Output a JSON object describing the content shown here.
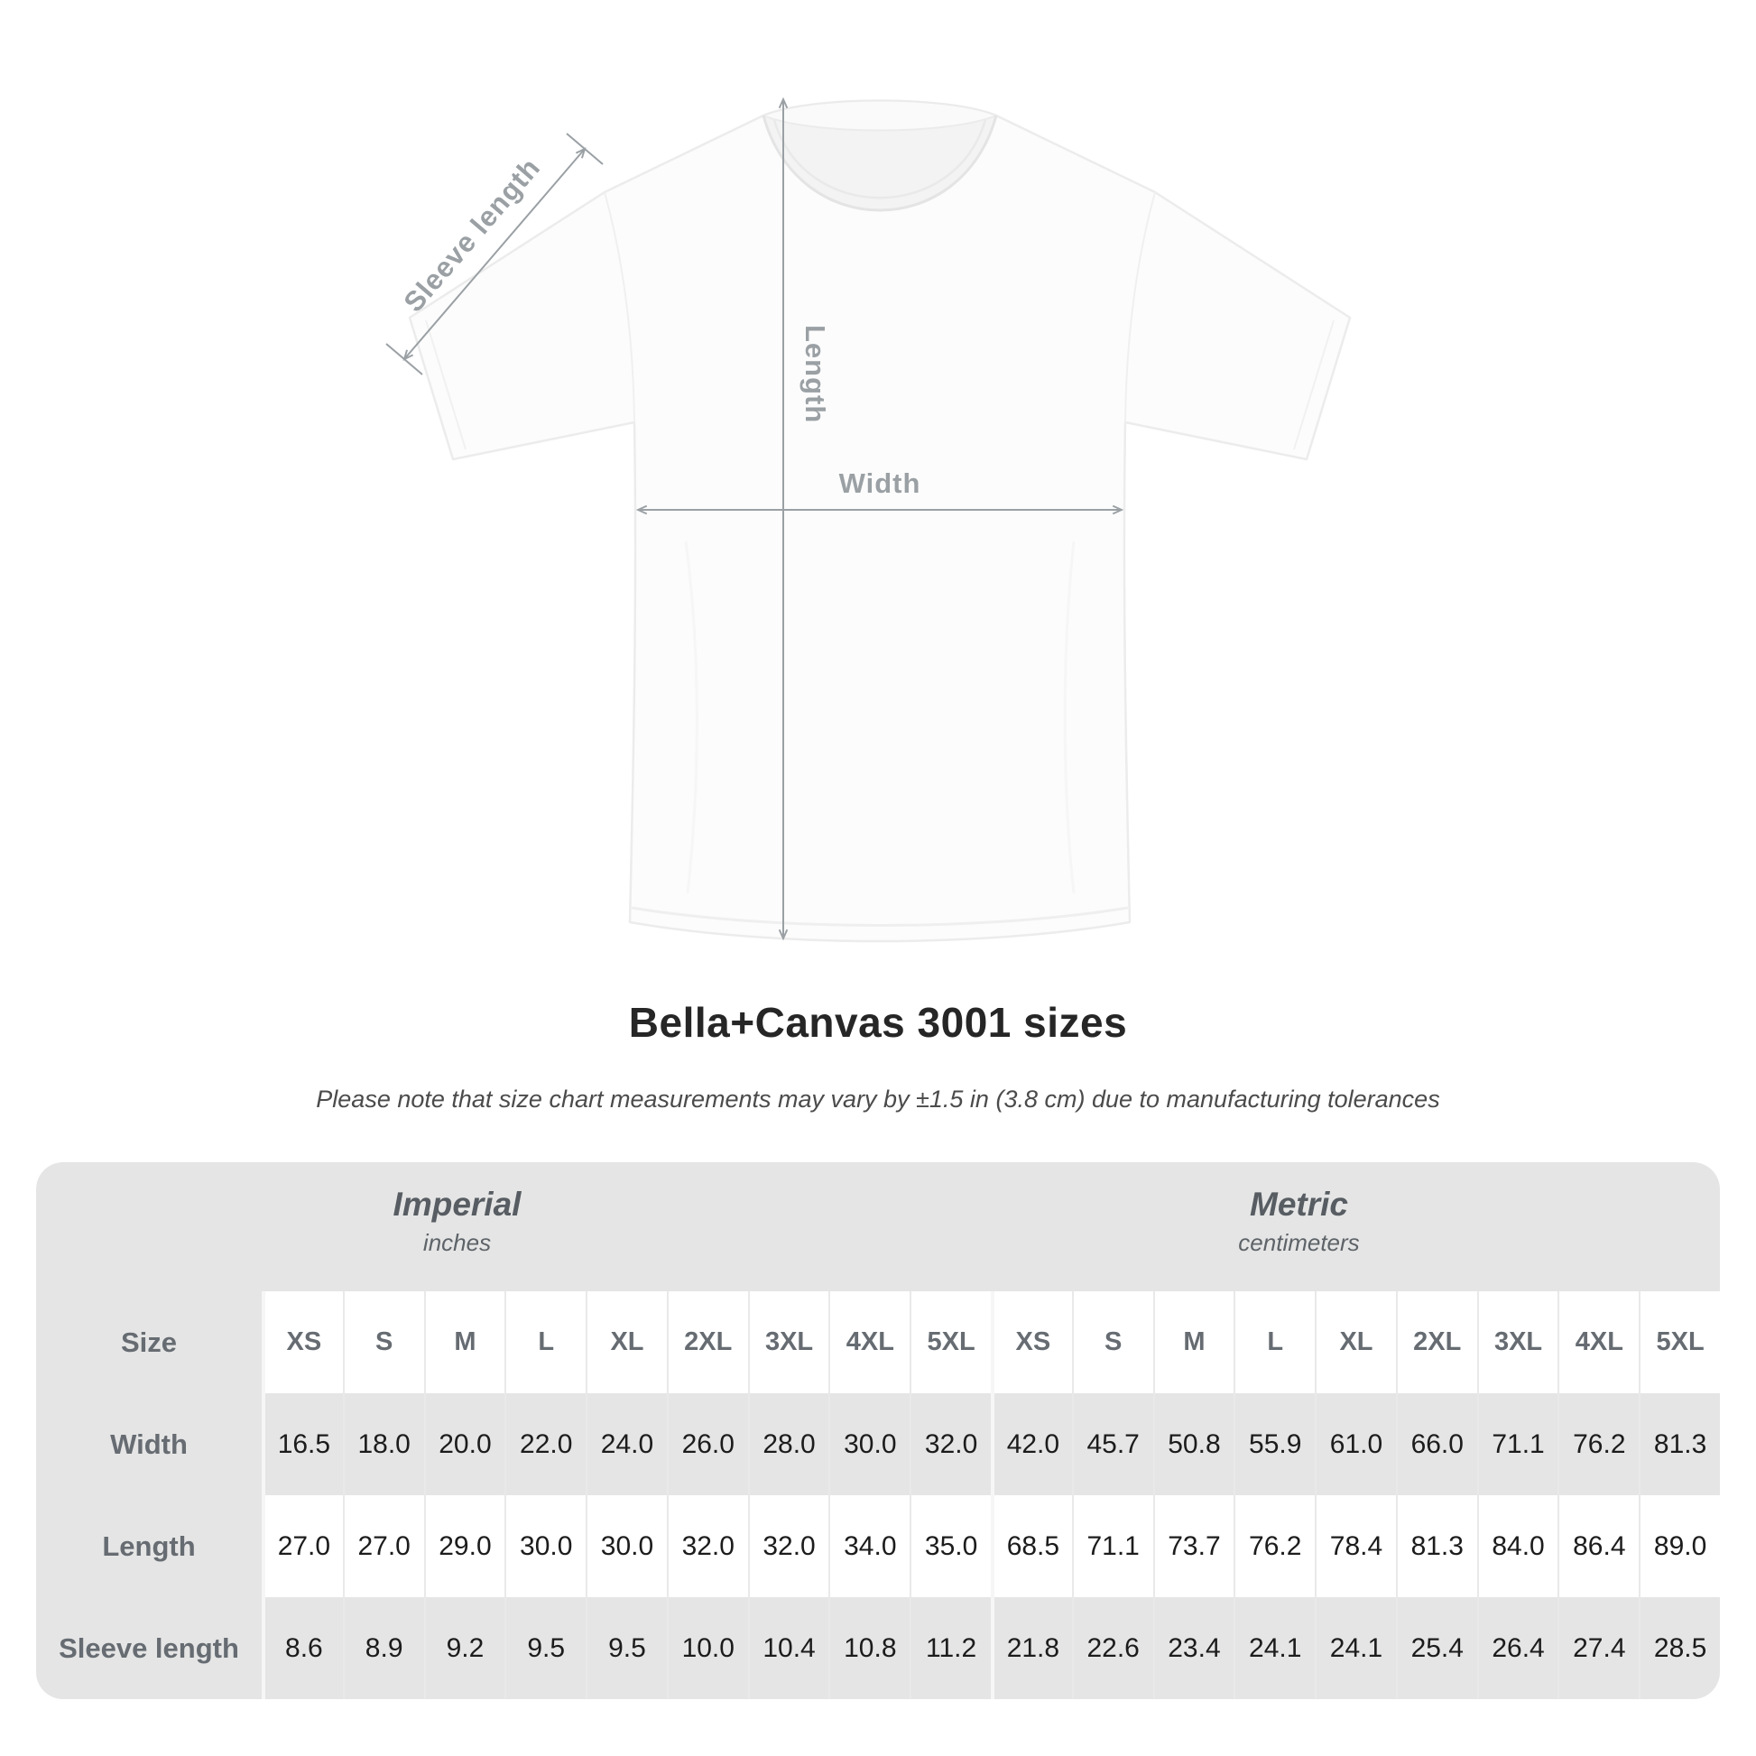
{
  "header": {
    "title": "Bella+Canvas 3001 sizes",
    "subtitle": "Please note that size chart measurements may vary by ±1.5 in (3.8 cm) due to manufacturing tolerances"
  },
  "diagram": {
    "labels": {
      "sleeve_length": "Sleeve length",
      "length": "Length",
      "width": "Width"
    },
    "annotation_color": "#9aa0a4",
    "shirt_color": "#fcfcfc"
  },
  "size_table": {
    "container_color": "#e5e5e5",
    "size_column_label": "Size",
    "groups": [
      {
        "name": "Imperial",
        "unit": "inches"
      },
      {
        "name": "Metric",
        "unit": "centimeters"
      }
    ],
    "sizes": [
      "XS",
      "S",
      "M",
      "L",
      "XL",
      "2XL",
      "3XL",
      "4XL",
      "5XL"
    ],
    "rows": [
      {
        "label": "Width",
        "imperial": [
          "16.5",
          "18.0",
          "20.0",
          "22.0",
          "24.0",
          "26.0",
          "28.0",
          "30.0",
          "32.0"
        ],
        "metric": [
          "42.0",
          "45.7",
          "50.8",
          "55.9",
          "61.0",
          "66.0",
          "71.1",
          "76.2",
          "81.3"
        ]
      },
      {
        "label": "Length",
        "imperial": [
          "27.0",
          "27.0",
          "29.0",
          "30.0",
          "30.0",
          "32.0",
          "32.0",
          "34.0",
          "35.0"
        ],
        "metric": [
          "68.5",
          "71.1",
          "73.7",
          "76.2",
          "78.4",
          "81.3",
          "84.0",
          "86.4",
          "89.0"
        ]
      },
      {
        "label": "Sleeve length",
        "imperial": [
          "8.6",
          "8.9",
          "9.2",
          "9.5",
          "9.5",
          "10.0",
          "10.4",
          "10.8",
          "11.2"
        ],
        "metric": [
          "21.8",
          "22.6",
          "23.4",
          "24.1",
          "24.1",
          "25.4",
          "26.4",
          "27.4",
          "28.5"
        ]
      }
    ]
  },
  "chart_data": {
    "type": "table",
    "title": "Bella+Canvas 3001 sizes",
    "note": "Please note that size chart measurements may vary by ±1.5 in (3.8 cm) due to manufacturing tolerances",
    "units": {
      "imperial": "inches",
      "metric": "centimeters"
    },
    "sizes": [
      "XS",
      "S",
      "M",
      "L",
      "XL",
      "2XL",
      "3XL",
      "4XL",
      "5XL"
    ],
    "measurements": [
      {
        "label": "Width",
        "imperial_in": [
          16.5,
          18.0,
          20.0,
          22.0,
          24.0,
          26.0,
          28.0,
          30.0,
          32.0
        ],
        "metric_cm": [
          42.0,
          45.7,
          50.8,
          55.9,
          61.0,
          66.0,
          71.1,
          76.2,
          81.3
        ]
      },
      {
        "label": "Length",
        "imperial_in": [
          27.0,
          27.0,
          29.0,
          30.0,
          30.0,
          32.0,
          32.0,
          34.0,
          35.0
        ],
        "metric_cm": [
          68.5,
          71.1,
          73.7,
          76.2,
          78.4,
          81.3,
          84.0,
          86.4,
          89.0
        ]
      },
      {
        "label": "Sleeve length",
        "imperial_in": [
          8.6,
          8.9,
          9.2,
          9.5,
          9.5,
          10.0,
          10.4,
          10.8,
          11.2
        ],
        "metric_cm": [
          21.8,
          22.6,
          23.4,
          24.1,
          24.1,
          25.4,
          26.4,
          27.4,
          28.5
        ]
      }
    ]
  }
}
